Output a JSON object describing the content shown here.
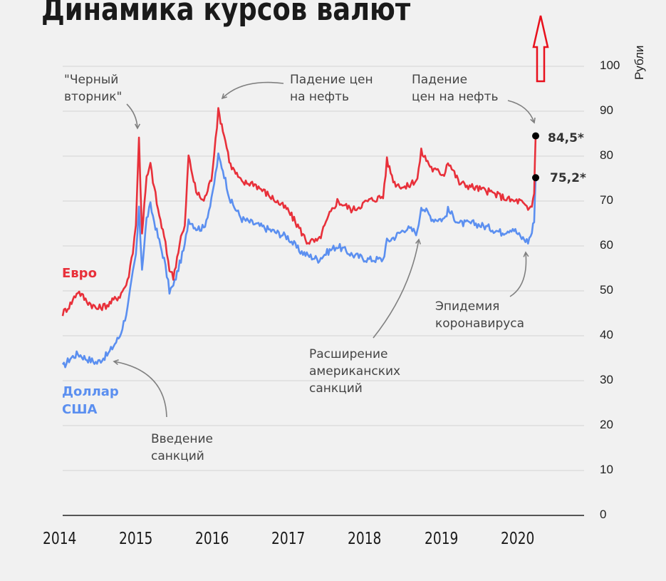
{
  "page": {
    "title": "Динамика курсов валют"
  },
  "colors": {
    "euro": "#e8303a",
    "dollar": "#5b8ff0",
    "grid": "#d9d9d9",
    "axis": "#222222",
    "annotation_arrow": "#808080",
    "overlay_arrow": "#e8101c",
    "background": "#f1f1f1"
  },
  "legend": {
    "euro": "Евро",
    "dollar_line1": "Доллар",
    "dollar_line2": "США"
  },
  "axes": {
    "y_label": "Рубли",
    "y_ticks": [
      "100",
      "90",
      "80",
      "70",
      "60",
      "50",
      "40",
      "30",
      "20",
      "10",
      "0"
    ],
    "x_ticks": [
      "2014",
      "2015",
      "2016",
      "2017",
      "2018",
      "2019",
      "2020"
    ]
  },
  "end_values": {
    "euro": "84,5*",
    "dollar": "75,2*"
  },
  "annotations": {
    "black_tuesday_1": "\"Черный",
    "black_tuesday_2": "вторник\"",
    "oil_2016_1": "Падение цен",
    "oil_2016_2": "на нефть",
    "oil_2020_1": "Падение",
    "oil_2020_2": "цен на нефть",
    "sanctions_1": "Введение",
    "sanctions_2": "санкций",
    "us_sanctions_1": "Расширение",
    "us_sanctions_2": "американских",
    "us_sanctions_3": "санкций",
    "covid_1": "Эпидемия",
    "covid_2": "коронавируса"
  },
  "chart_data": {
    "type": "line",
    "title": "Динамика курсов валют",
    "xlabel": "",
    "ylabel": "Рубли",
    "ylim": [
      0,
      100
    ],
    "xlim": [
      2014.0,
      2020.85
    ],
    "grid": true,
    "legend_position": "inline-left",
    "x_ticks": [
      2014,
      2015,
      2016,
      2017,
      2018,
      2019,
      2020
    ],
    "y_ticks": [
      0,
      10,
      20,
      30,
      40,
      50,
      60,
      70,
      80,
      90,
      100
    ],
    "series": [
      {
        "name": "Евро",
        "color": "#e8303a",
        "x": [
          2014.0,
          2014.1,
          2014.2,
          2014.3,
          2014.45,
          2014.6,
          2014.75,
          2014.85,
          2014.92,
          2014.96,
          2015.0,
          2015.04,
          2015.1,
          2015.15,
          2015.25,
          2015.33,
          2015.4,
          2015.45,
          2015.55,
          2015.6,
          2015.65,
          2015.75,
          2015.85,
          2015.95,
          2016.04,
          2016.1,
          2016.2,
          2016.35,
          2016.5,
          2016.65,
          2016.8,
          2016.95,
          2017.1,
          2017.2,
          2017.35,
          2017.5,
          2017.6,
          2017.8,
          2018.0,
          2018.2,
          2018.25,
          2018.35,
          2018.5,
          2018.65,
          2018.7,
          2018.85,
          2019.0,
          2019.05,
          2019.2,
          2019.4,
          2019.6,
          2019.75,
          2019.9,
          2020.0,
          2020.1,
          2020.15,
          2020.18,
          2020.2
        ],
        "values": [
          45,
          47,
          50,
          48,
          46,
          47,
          49,
          52,
          59,
          65,
          84,
          63,
          75,
          78,
          68,
          62,
          55,
          53,
          62,
          64,
          80,
          72,
          70,
          75,
          90,
          86,
          78,
          74,
          74,
          72,
          70,
          68,
          64,
          61,
          61,
          67,
          70,
          68,
          70,
          71,
          79,
          74,
          73,
          75,
          81,
          77,
          76,
          79,
          74,
          73,
          72,
          71,
          70,
          70,
          68,
          69,
          72,
          84.5
        ]
      },
      {
        "name": "Доллар США",
        "color": "#5b8ff0",
        "x": [
          2014.0,
          2014.1,
          2014.2,
          2014.3,
          2014.45,
          2014.6,
          2014.75,
          2014.85,
          2014.92,
          2014.96,
          2015.0,
          2015.04,
          2015.1,
          2015.15,
          2015.25,
          2015.33,
          2015.4,
          2015.45,
          2015.55,
          2015.6,
          2015.65,
          2015.75,
          2015.85,
          2015.95,
          2016.04,
          2016.1,
          2016.2,
          2016.35,
          2016.5,
          2016.65,
          2016.8,
          2016.95,
          2017.1,
          2017.2,
          2017.35,
          2017.5,
          2017.6,
          2017.8,
          2018.0,
          2018.2,
          2018.25,
          2018.35,
          2018.5,
          2018.65,
          2018.7,
          2018.85,
          2019.0,
          2019.05,
          2019.2,
          2019.4,
          2019.6,
          2019.75,
          2019.9,
          2020.0,
          2020.1,
          2020.15,
          2020.18,
          2020.2
        ],
        "values": [
          33,
          35,
          36,
          35,
          34,
          36,
          40,
          46,
          54,
          58,
          68,
          55,
          66,
          69,
          62,
          57,
          50,
          51,
          57,
          60,
          66,
          64,
          64,
          70,
          80,
          77,
          70,
          66,
          65,
          64,
          63,
          62,
          59,
          58,
          57,
          59,
          60,
          58,
          57,
          57,
          61,
          62,
          64,
          63,
          69,
          66,
          66,
          68,
          65,
          65,
          64,
          63,
          64,
          62,
          61,
          63,
          66,
          75.2
        ]
      }
    ],
    "end_labels": [
      {
        "series": "Евро",
        "value": 84.5,
        "label": "84,5*"
      },
      {
        "series": "Доллар США",
        "value": 75.2,
        "label": "75,2*"
      }
    ],
    "annotations": [
      {
        "text": "\"Черный вторник\"",
        "x": 2014.96,
        "y": 84
      },
      {
        "text": "Падение цен на нефть",
        "x": 2016.04,
        "y": 90
      },
      {
        "text": "Падение цен на нефть",
        "x": 2020.2,
        "y": 84.5
      },
      {
        "text": "Введение санкций",
        "x": 2014.65,
        "y": 34
      },
      {
        "text": "Расширение американских санкций",
        "x": 2018.65,
        "y": 61
      },
      {
        "text": "Эпидемия коронавируса",
        "x": 2020.05,
        "y": 60
      }
    ]
  }
}
